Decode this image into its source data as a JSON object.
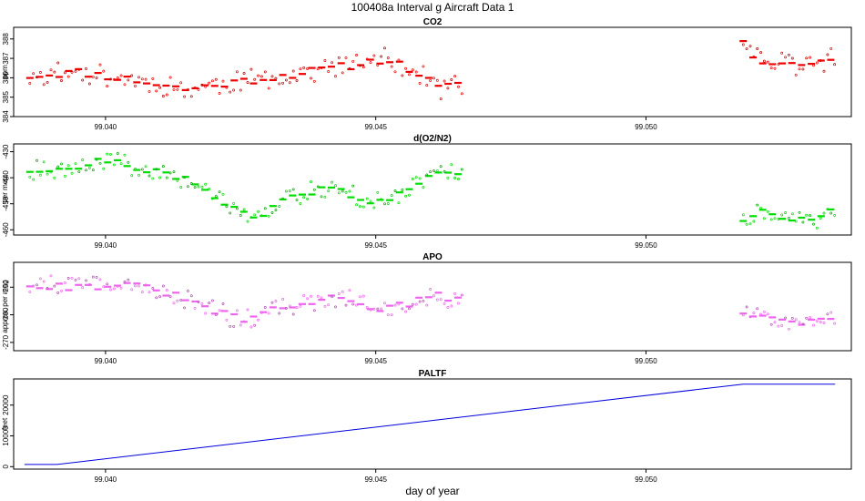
{
  "title": "100408a   Interval g Aircraft Data 1",
  "xlabel": "day of year",
  "chart_data": [
    {
      "type": "scatter",
      "title": "CO2",
      "ylabel": "ppm",
      "xlim": [
        99.0383,
        99.0538
      ],
      "ylim": [
        384,
        388.6
      ],
      "yticks": [
        384,
        385,
        386,
        387,
        388
      ],
      "xticks": [
        "99.040",
        "99.045",
        "99.050"
      ],
      "color": "#ee0000",
      "series": [
        {
          "segments": [
            {
              "x0": 99.0386,
              "x1": 99.0466,
              "keys": [
                [
                  99.0386,
                  386.1
                ],
                [
                  99.0395,
                  386.3
                ],
                [
                  99.0405,
                  385.9
                ],
                [
                  99.0415,
                  385.4
                ],
                [
                  99.0422,
                  385.7
                ],
                [
                  99.043,
                  386.0
                ],
                [
                  99.044,
                  386.4
                ],
                [
                  99.0447,
                  386.7
                ],
                [
                  99.0452,
                  387.0
                ],
                [
                  99.0458,
                  386.2
                ],
                [
                  99.0462,
                  385.4
                ],
                [
                  99.0466,
                  385.7
                ]
              ],
              "noise": 0.35,
              "seed": 11
            },
            {
              "x0": 99.0518,
              "x1": 99.0535,
              "keys": [
                [
                  99.0518,
                  388.0
                ],
                [
                  99.052,
                  387.0
                ],
                [
                  99.0525,
                  386.8
                ],
                [
                  99.053,
                  386.6
                ],
                [
                  99.0535,
                  387.1
                ]
              ],
              "noise": 0.35,
              "seed": 12
            }
          ]
        }
      ]
    },
    {
      "type": "scatter",
      "title": "d(O2/N2)",
      "ylabel": "per meg",
      "xlim": [
        99.0383,
        99.0538
      ],
      "ylim": [
        -462,
        -427
      ],
      "yticks": [
        -460,
        -450,
        -440,
        -430
      ],
      "xticks": [
        "99.040",
        "99.045",
        "99.050"
      ],
      "color": "#00dd00",
      "series": [
        {
          "segments": [
            {
              "x0": 99.0386,
              "x1": 99.0466,
              "keys": [
                [
                  99.0386,
                  -437
                ],
                [
                  99.0395,
                  -436
                ],
                [
                  99.04,
                  -433
                ],
                [
                  99.0408,
                  -437
                ],
                [
                  99.0415,
                  -441
                ],
                [
                  99.042,
                  -447
                ],
                [
                  99.0425,
                  -452
                ],
                [
                  99.0428,
                  -457
                ],
                [
                  99.0432,
                  -449
                ],
                [
                  99.0437,
                  -446
                ],
                [
                  99.0442,
                  -443
                ],
                [
                  99.0447,
                  -448
                ],
                [
                  99.0452,
                  -449
                ],
                [
                  99.0457,
                  -444
                ],
                [
                  99.0462,
                  -437
                ],
                [
                  99.0466,
                  -440
                ]
              ],
              "noise": 2.4,
              "seed": 21
            },
            {
              "x0": 99.0518,
              "x1": 99.0535,
              "keys": [
                [
                  99.0518,
                  -456
                ],
                [
                  99.0521,
                  -453
                ],
                [
                  99.0526,
                  -455
                ],
                [
                  99.0531,
                  -457
                ],
                [
                  99.0535,
                  -452
                ]
              ],
              "noise": 2.0,
              "seed": 22
            }
          ]
        }
      ]
    },
    {
      "type": "scatter",
      "title": "APO",
      "ylabel": "approx. per meg",
      "xlim": [
        99.0383,
        99.0538
      ],
      "ylim": [
        -273,
        -241
      ],
      "yticks": [
        -270,
        -260,
        -250
      ],
      "xticks": [
        "99.040",
        "99.045",
        "99.050"
      ],
      "color": "#ee66ee",
      "series": [
        {
          "segments": [
            {
              "x0": 99.0386,
              "x1": 99.0466,
              "keys": [
                [
                  99.0386,
                  -249
                ],
                [
                  99.0395,
                  -250
                ],
                [
                  99.0402,
                  -249
                ],
                [
                  99.041,
                  -251
                ],
                [
                  99.0418,
                  -257
                ],
                [
                  99.0425,
                  -262
                ],
                [
                  99.043,
                  -259
                ],
                [
                  99.0437,
                  -256
                ],
                [
                  99.0444,
                  -253
                ],
                [
                  99.045,
                  -258
                ],
                [
                  99.0456,
                  -256
                ],
                [
                  99.0462,
                  -253
                ],
                [
                  99.0466,
                  -255
                ]
              ],
              "noise": 2.3,
              "seed": 31
            },
            {
              "x0": 99.0518,
              "x1": 99.0535,
              "keys": [
                [
                  99.0518,
                  -259
                ],
                [
                  99.0524,
                  -262
                ],
                [
                  99.053,
                  -263
                ],
                [
                  99.0535,
                  -261
                ]
              ],
              "noise": 1.8,
              "seed": 32
            }
          ]
        }
      ]
    },
    {
      "type": "line",
      "title": "PALTF",
      "ylabel": "feet",
      "xlim": [
        99.0383,
        99.0538
      ],
      "ylim": [
        -800,
        28500
      ],
      "yticks": [
        0,
        10000,
        20000
      ],
      "xticks": [
        "99.040",
        "99.045",
        "99.050"
      ],
      "color": "#0000dd",
      "series": [
        {
          "x": [
            99.0385,
            99.0391,
            99.0518,
            99.0535
          ],
          "y": [
            700,
            700,
            26800,
            26800
          ]
        }
      ]
    }
  ],
  "xtick_values": [
    99.04,
    99.045,
    99.05
  ]
}
